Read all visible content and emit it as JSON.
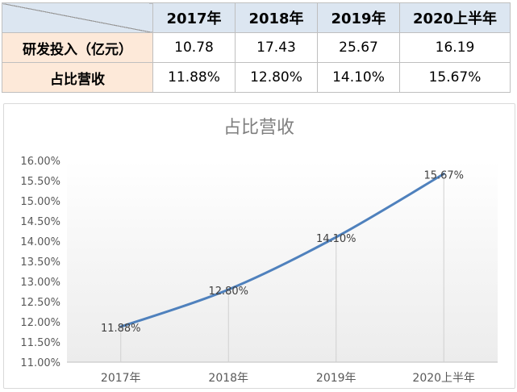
{
  "table": {
    "headers": [
      "",
      "2017年",
      "2018年",
      "2019年",
      "2020上半年"
    ],
    "rows": [
      {
        "label": "研发投入（亿元）",
        "values": [
          "10.78",
          "17.43",
          "25.67",
          "16.19"
        ]
      },
      {
        "label": "占比营收",
        "values": [
          "11.88%",
          "12.80%",
          "14.10%",
          "15.67%"
        ]
      }
    ]
  },
  "chart_data": {
    "type": "line",
    "title": "占比营收",
    "categories": [
      "2017年",
      "2018年",
      "2019年",
      "2020上半年"
    ],
    "series": [
      {
        "values": [
          11.88,
          12.8,
          14.1,
          15.67
        ],
        "labels": [
          "11.88%",
          "12.80%",
          "14.10%",
          "15.67%"
        ]
      }
    ],
    "ylim": [
      11.0,
      16.0
    ],
    "yticks": [
      "11.00%",
      "11.50%",
      "12.00%",
      "12.50%",
      "13.00%",
      "13.50%",
      "14.00%",
      "14.50%",
      "15.00%",
      "15.50%",
      "16.00%"
    ],
    "line_color": "#4f81bd",
    "grid": false,
    "legend": "none"
  }
}
